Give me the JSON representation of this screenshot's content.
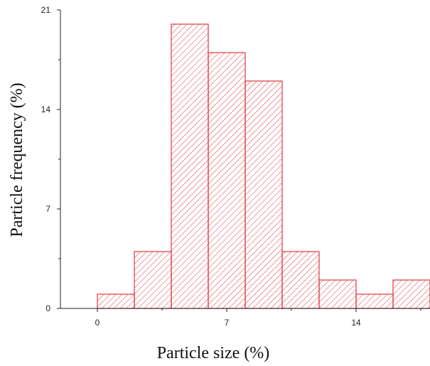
{
  "chart_data": {
    "type": "bar",
    "subtype": "histogram",
    "xlabel": "Particle size (%)",
    "ylabel": "Particle frequency (%)",
    "xlim": [
      -2,
      18
    ],
    "ylim": [
      0,
      21
    ],
    "xticks": [
      "0",
      "7",
      "14"
    ],
    "yticks": [
      "0",
      "7",
      "14",
      "21"
    ],
    "bins": [
      {
        "x0": 0,
        "x1": 2,
        "value": 1
      },
      {
        "x0": 2,
        "x1": 4,
        "value": 4
      },
      {
        "x0": 4,
        "x1": 6,
        "value": 20
      },
      {
        "x0": 6,
        "x1": 8,
        "value": 18
      },
      {
        "x0": 8,
        "x1": 10,
        "value": 16
      },
      {
        "x0": 10,
        "x1": 12,
        "value": 4
      },
      {
        "x0": 12,
        "x1": 14,
        "value": 2
      },
      {
        "x0": 14,
        "x1": 16,
        "value": 1
      },
      {
        "x0": 16,
        "x1": 18,
        "value": 2
      }
    ],
    "bar_color": "#e0454f",
    "axis_color": "#222222",
    "grid": false,
    "legend": false
  }
}
